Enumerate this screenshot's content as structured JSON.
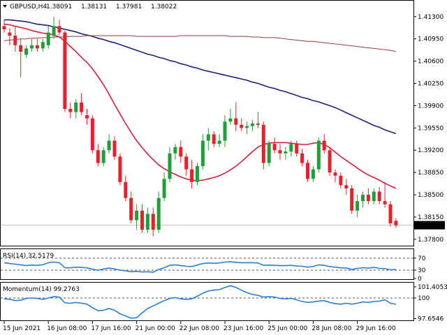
{
  "header": {
    "symbol_label": "GBPUSD,H4",
    "ohlc_values": [
      "1.38091",
      "1.38131",
      "1.37981",
      "1.38022"
    ]
  },
  "rsi_header": "RSI(14) 32.5179",
  "momentum_header": "Momentum(14) 99.2763",
  "colors": {
    "bull": "#1f9e3a",
    "bear": "#e8202a",
    "ma_fast": "#d6203a",
    "ma_mid": "#1a237e",
    "ma_slow": "#9a3a3a",
    "rsi": "#2a7fd4",
    "momentum": "#2a7fd4",
    "grid": "#c8c8c8",
    "frame": "#000000",
    "current_line": "#c0c0c0"
  },
  "chart_data": [
    {
      "type": "candlestick",
      "title": "GBPUSD,H4",
      "y_ticks": [
        "1.41300",
        "1.40950",
        "1.40600",
        "1.40250",
        "1.39900",
        "1.39550",
        "1.39200",
        "1.38850",
        "1.38500",
        "1.38150",
        "1.37800"
      ],
      "ylim": [
        1.377,
        1.4155
      ],
      "current_price": "1.38022",
      "x_ticks": [
        "15 Jun 2021",
        "16 Jun 08:00",
        "17 Jun 16:00",
        "21 Jun 00:00",
        "22 Jun 08:00",
        "23 Jun 16:00",
        "25 Jun 00:00",
        "28 Jun 08:00",
        "29 Jun 16:00"
      ],
      "x_tick_bar_index": [
        0,
        8,
        16,
        24,
        32,
        40,
        48,
        56,
        64
      ],
      "candles": [
        [
          1.4115,
          1.4125,
          1.4105,
          1.411
        ],
        [
          1.4105,
          1.4112,
          1.4085,
          1.41
        ],
        [
          1.41,
          1.4115,
          1.4075,
          1.4085
        ],
        [
          1.4085,
          1.4095,
          1.4035,
          1.4075
        ],
        [
          1.407,
          1.4085,
          1.4065,
          1.408
        ],
        [
          1.408,
          1.4095,
          1.4075,
          1.4085
        ],
        [
          1.4085,
          1.4095,
          1.4075,
          1.408
        ],
        [
          1.408,
          1.4095,
          1.4075,
          1.409
        ],
        [
          1.4085,
          1.4115,
          1.408,
          1.4105
        ],
        [
          1.41,
          1.413,
          1.4095,
          1.4115
        ],
        [
          1.4115,
          1.4125,
          1.41,
          1.4105
        ],
        [
          1.4105,
          1.4108,
          1.398,
          1.3985
        ],
        [
          1.3985,
          1.3995,
          1.397,
          1.398
        ],
        [
          1.398,
          1.4,
          1.397,
          1.3995
        ],
        [
          1.3995,
          1.401,
          1.3975,
          1.398
        ],
        [
          1.3975,
          1.3985,
          1.396,
          1.397
        ],
        [
          1.397,
          1.3975,
          1.3915,
          1.392
        ],
        [
          1.392,
          1.393,
          1.3895,
          1.39
        ],
        [
          1.39,
          1.3925,
          1.3895,
          1.392
        ],
        [
          1.392,
          1.3945,
          1.3915,
          1.3935
        ],
        [
          1.3935,
          1.3942,
          1.3905,
          1.391
        ],
        [
          1.391,
          1.3915,
          1.3865,
          1.387
        ],
        [
          1.387,
          1.388,
          1.384,
          1.3845
        ],
        [
          1.3845,
          1.3855,
          1.3805,
          1.381
        ],
        [
          1.381,
          1.3835,
          1.3795,
          1.3825
        ],
        [
          1.3825,
          1.3835,
          1.379,
          1.3795
        ],
        [
          1.3795,
          1.383,
          1.379,
          1.382
        ],
        [
          1.382,
          1.383,
          1.3785,
          1.3795
        ],
        [
          1.3795,
          1.3855,
          1.379,
          1.3845
        ],
        [
          1.3845,
          1.3885,
          1.384,
          1.3875
        ],
        [
          1.3875,
          1.3925,
          1.387,
          1.3915
        ],
        [
          1.3915,
          1.393,
          1.3905,
          1.3925
        ],
        [
          1.3925,
          1.3935,
          1.39,
          1.391
        ],
        [
          1.391,
          1.3915,
          1.388,
          1.389
        ],
        [
          1.389,
          1.3905,
          1.386,
          1.387
        ],
        [
          1.387,
          1.39,
          1.3865,
          1.3895
        ],
        [
          1.3895,
          1.3945,
          1.389,
          1.3935
        ],
        [
          1.3935,
          1.3955,
          1.392,
          1.3945
        ],
        [
          1.3945,
          1.395,
          1.3925,
          1.393
        ],
        [
          1.393,
          1.3945,
          1.3925,
          1.3935
        ],
        [
          1.3935,
          1.3975,
          1.3925,
          1.3965
        ],
        [
          1.3965,
          1.3985,
          1.396,
          1.397
        ],
        [
          1.397,
          1.3995,
          1.395,
          1.396
        ],
        [
          1.396,
          1.397,
          1.395,
          1.3955
        ],
        [
          1.3955,
          1.3965,
          1.3945,
          1.3958
        ],
        [
          1.3958,
          1.3968,
          1.395,
          1.3962
        ],
        [
          1.3962,
          1.398,
          1.3955,
          1.396
        ],
        [
          1.396,
          1.3965,
          1.389,
          1.39
        ],
        [
          1.39,
          1.3935,
          1.3895,
          1.393
        ],
        [
          1.393,
          1.394,
          1.3915,
          1.392
        ],
        [
          1.392,
          1.393,
          1.3905,
          1.3915
        ],
        [
          1.3915,
          1.3925,
          1.3905,
          1.3918
        ],
        [
          1.3918,
          1.3935,
          1.391,
          1.393
        ],
        [
          1.393,
          1.3935,
          1.391,
          1.3915
        ],
        [
          1.3915,
          1.3922,
          1.3895,
          1.39
        ],
        [
          1.39,
          1.3905,
          1.387,
          1.3875
        ],
        [
          1.3875,
          1.3895,
          1.387,
          1.389
        ],
        [
          1.389,
          1.394,
          1.3885,
          1.3935
        ],
        [
          1.3935,
          1.3945,
          1.3915,
          1.392
        ],
        [
          1.392,
          1.3925,
          1.388,
          1.3885
        ],
        [
          1.3885,
          1.389,
          1.387,
          1.388
        ],
        [
          1.388,
          1.3885,
          1.386,
          1.3865
        ],
        [
          1.3865,
          1.3875,
          1.385,
          1.386
        ],
        [
          1.386,
          1.3865,
          1.382,
          1.3825
        ],
        [
          1.3825,
          1.385,
          1.3815,
          1.384
        ],
        [
          1.384,
          1.3855,
          1.383,
          1.385
        ],
        [
          1.385,
          1.386,
          1.3835,
          1.384
        ],
        [
          1.384,
          1.386,
          1.3835,
          1.3855
        ],
        [
          1.3855,
          1.3862,
          1.3835,
          1.384
        ],
        [
          1.384,
          1.387,
          1.383,
          1.3835
        ],
        [
          1.3835,
          1.384,
          1.38,
          1.3805
        ],
        [
          1.3809,
          1.3813,
          1.3798,
          1.3802
        ]
      ],
      "series": [
        {
          "key": "ma_fast",
          "values": [
            1.4118,
            1.4117,
            1.4115,
            1.4113,
            1.4111,
            1.4108,
            1.4106,
            1.4104,
            1.4103,
            1.4101,
            1.4098,
            1.4091,
            1.4083,
            1.4075,
            1.4066,
            1.4058,
            1.4048,
            1.4036,
            1.4023,
            1.4008,
            1.3992,
            1.3977,
            1.3962,
            1.3948,
            1.3935,
            1.3924,
            1.3914,
            1.3905,
            1.3897,
            1.3891,
            1.3886,
            1.3882,
            1.3878,
            1.3875,
            1.3873,
            1.3872,
            1.3873,
            1.3875,
            1.3877,
            1.388,
            1.3884,
            1.3889,
            1.3895,
            1.3902,
            1.391,
            1.3918,
            1.3925,
            1.3929,
            1.3931,
            1.3932,
            1.3932,
            1.3932,
            1.3931,
            1.393,
            1.3929,
            1.3929,
            1.3931,
            1.3932,
            1.3929,
            1.3924,
            1.3917,
            1.391,
            1.3904,
            1.3898,
            1.3892,
            1.3886,
            1.3881,
            1.3877,
            1.3873,
            1.3868,
            1.3864,
            1.386
          ]
        },
        {
          "key": "ma_mid",
          "values": [
            1.4125,
            1.4125,
            1.4124,
            1.4123,
            1.4122,
            1.412,
            1.4118,
            1.4117,
            1.4116,
            1.4114,
            1.4112,
            1.411,
            1.4108,
            1.4106,
            1.4103,
            1.4101,
            1.4099,
            1.4096,
            1.4094,
            1.4091,
            1.4089,
            1.4086,
            1.4083,
            1.408,
            1.4077,
            1.4074,
            1.4071,
            1.4069,
            1.4066,
            1.4064,
            1.4061,
            1.4059,
            1.4056,
            1.4054,
            1.4051,
            1.4049,
            1.4046,
            1.4044,
            1.4042,
            1.404,
            1.4038,
            1.4036,
            1.4034,
            1.4032,
            1.403,
            1.4027,
            1.4025,
            1.4022,
            1.4019,
            1.4017,
            1.4014,
            1.4012,
            1.4009,
            1.4006,
            1.4003,
            1.4001,
            1.3998,
            1.3996,
            1.3993,
            1.399,
            1.3987,
            1.3983,
            1.3979,
            1.3975,
            1.3971,
            1.3967,
            1.3963,
            1.3959,
            1.3956,
            1.3952,
            1.3949,
            1.3946
          ]
        },
        {
          "key": "ma_slow",
          "values": [
            1.4092,
            1.4093,
            1.4094,
            1.4095,
            1.4095,
            1.4096,
            1.4096,
            1.4097,
            1.4097,
            1.4098,
            1.4098,
            1.4098,
            1.4099,
            1.4099,
            1.4099,
            1.41,
            1.41,
            1.41,
            1.41,
            1.41,
            1.41,
            1.41,
            1.41,
            1.41,
            1.4099,
            1.4099,
            1.4099,
            1.4099,
            1.4099,
            1.4099,
            1.4099,
            1.4099,
            1.41,
            1.41,
            1.41,
            1.41,
            1.41,
            1.41,
            1.41,
            1.41,
            1.41,
            1.4099,
            1.4099,
            1.4099,
            1.4099,
            1.4098,
            1.4098,
            1.4097,
            1.4097,
            1.4097,
            1.4096,
            1.4095,
            1.4094,
            1.4093,
            1.4092,
            1.4091,
            1.4091,
            1.409,
            1.4089,
            1.4088,
            1.4087,
            1.4086,
            1.4085,
            1.4084,
            1.4083,
            1.4082,
            1.4081,
            1.408,
            1.4079,
            1.4078,
            1.4077,
            1.4075
          ]
        }
      ]
    },
    {
      "type": "line",
      "title": "RSI(14) 32.5179",
      "y_ticks": [
        "70",
        "30",
        "0"
      ],
      "levels": [
        70,
        30
      ],
      "ylim": [
        0,
        100
      ],
      "series": [
        {
          "key": "rsi",
          "values": [
            55,
            52,
            50,
            48,
            45,
            47,
            46,
            48,
            55,
            57,
            55,
            38,
            38,
            40,
            39,
            38,
            33,
            30,
            34,
            37,
            34,
            30,
            28,
            25,
            26,
            24,
            25,
            23,
            32,
            38,
            46,
            48,
            45,
            43,
            42,
            47,
            52,
            54,
            53,
            54,
            57,
            58,
            56,
            55,
            55,
            55,
            54,
            46,
            47,
            46,
            45,
            45,
            46,
            44,
            43,
            40,
            42,
            48,
            46,
            42,
            40,
            38,
            37,
            32,
            36,
            38,
            37,
            39,
            36,
            35,
            31,
            32.5
          ]
        }
      ]
    },
    {
      "type": "line",
      "title": "Momentum(14) 99.2763",
      "y_ticks": [
        "101.4053",
        "100",
        "97.6546"
      ],
      "levels": [
        100
      ],
      "ylim": [
        97.45,
        101.75
      ],
      "series": [
        {
          "key": "momentum",
          "values": [
            99.9,
            99.85,
            99.7,
            99.75,
            99.95,
            100.0,
            99.95,
            99.85,
            100.0,
            100.15,
            100.1,
            99.45,
            99.4,
            99.5,
            99.4,
            99.3,
            98.9,
            98.55,
            98.6,
            98.8,
            98.6,
            98.2,
            97.95,
            97.7,
            97.75,
            98.3,
            98.8,
            99.1,
            99.4,
            99.7,
            99.95,
            100.05,
            99.9,
            99.85,
            99.9,
            100.2,
            100.55,
            100.8,
            100.9,
            100.95,
            101.2,
            101.4,
            101.2,
            100.9,
            100.6,
            100.4,
            100.3,
            100.1,
            100.15,
            100.1,
            99.95,
            99.9,
            99.95,
            99.8,
            99.6,
            99.5,
            99.55,
            99.65,
            99.7,
            99.5,
            99.35,
            99.3,
            99.4,
            99.3,
            99.4,
            99.55,
            99.5,
            99.6,
            99.65,
            99.8,
            99.4,
            99.28
          ]
        }
      ]
    }
  ]
}
